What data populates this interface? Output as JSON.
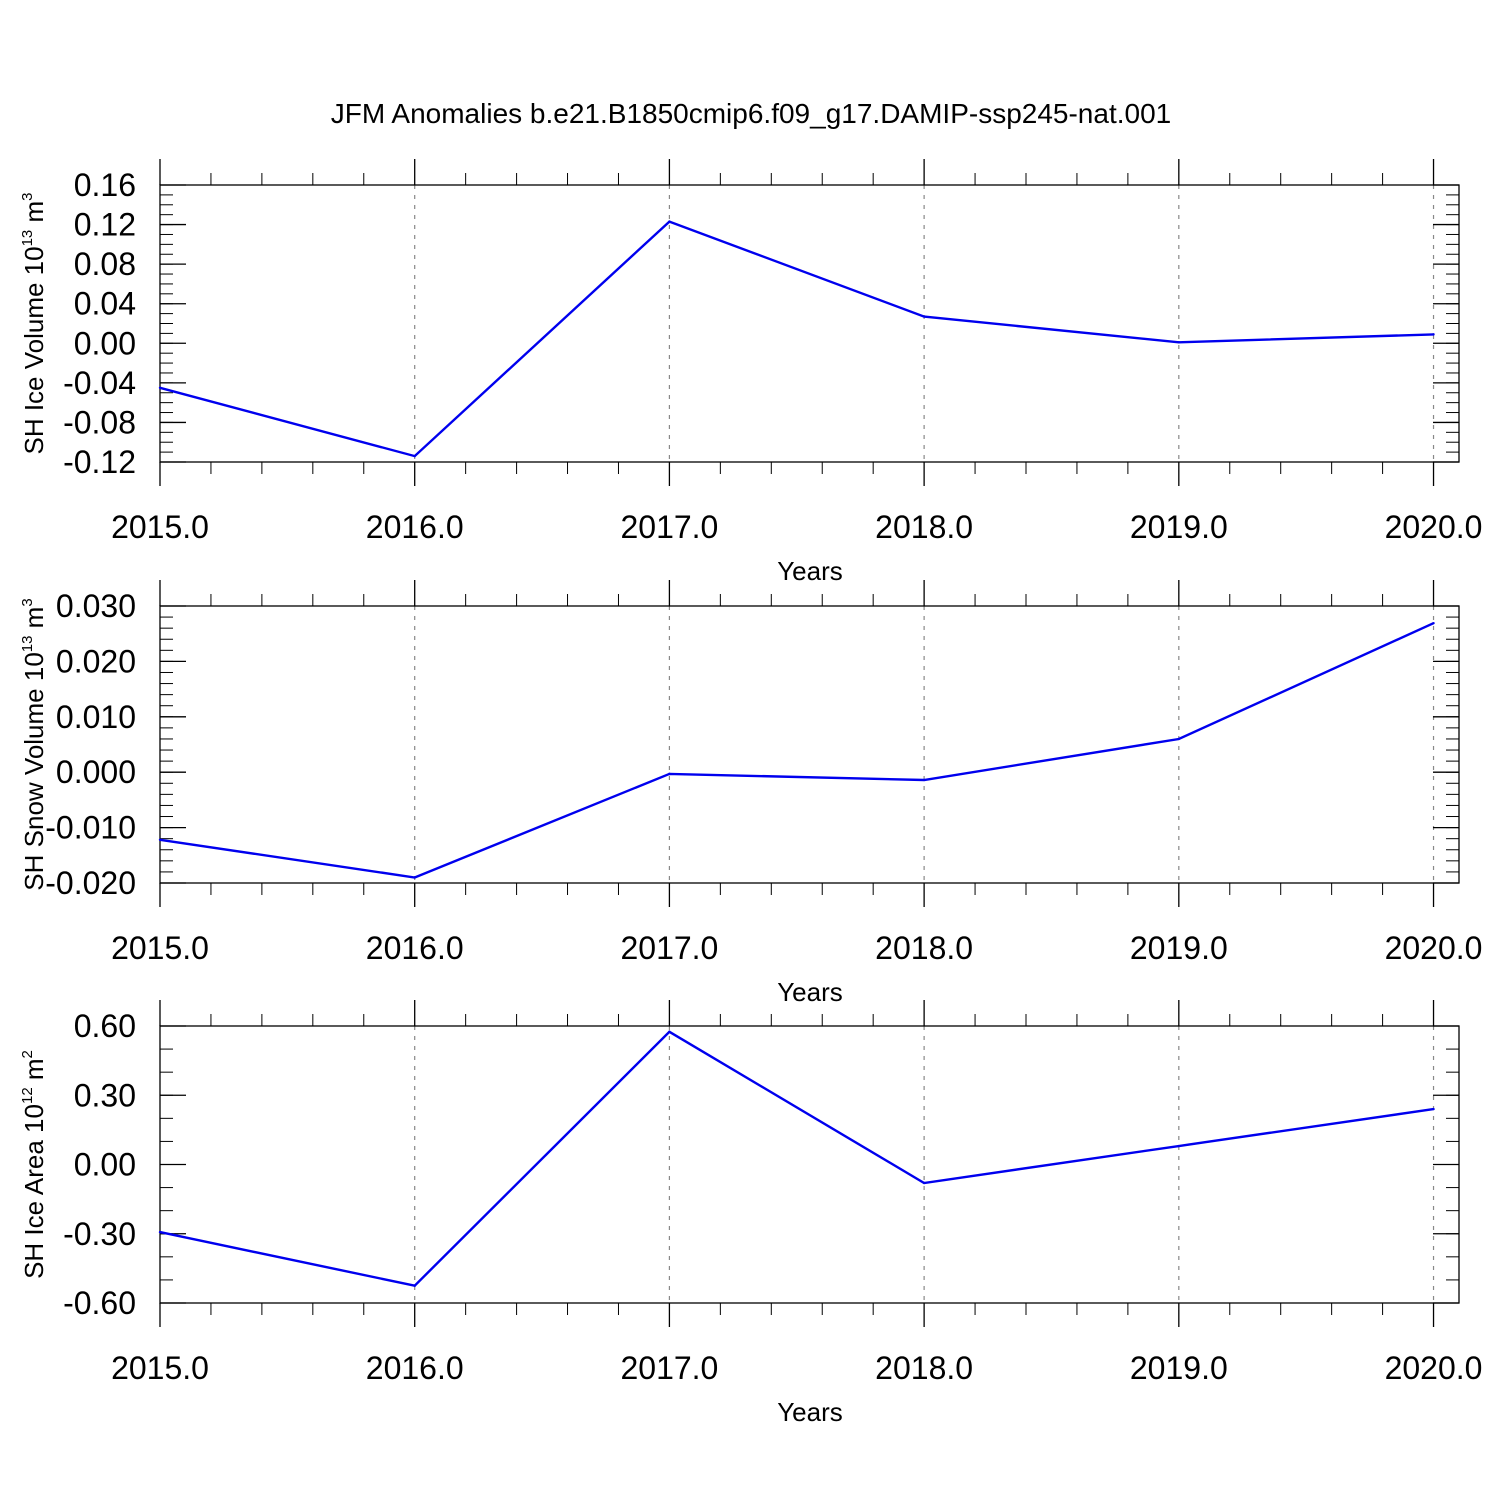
{
  "figure": {
    "title": "JFM Anomalies b.e21.B1850cmip6.f09_g17.DAMIP-ssp245-nat.001"
  },
  "chart_data": [
    {
      "type": "line",
      "xlabel": "Years",
      "ylabel": {
        "text": "SH Ice Volume 10",
        "sup": "13",
        "unit": " m",
        "unit_sup": "3"
      },
      "x": [
        2015,
        2016,
        2017,
        2018,
        2019,
        2020
      ],
      "xticks": [
        "2015.0",
        "2016.0",
        "2017.0",
        "2018.0",
        "2019.0",
        "2020.0"
      ],
      "xlim": [
        2015,
        2020.1
      ],
      "ylim": [
        -0.12,
        0.16
      ],
      "yticks": [
        "-0.12",
        "-0.08",
        "-0.04",
        "0.00",
        "0.04",
        "0.08",
        "0.12",
        "0.16"
      ],
      "yminor_step": 0.01,
      "series": [
        {
          "values": [
            -0.045,
            -0.114,
            0.123,
            0.027,
            0.001,
            0.009
          ],
          "color": "#0000ee"
        }
      ]
    },
    {
      "type": "line",
      "xlabel": "Years",
      "ylabel": {
        "text": "SH Snow Volume 10",
        "sup": "13",
        "unit": " m",
        "unit_sup": "3"
      },
      "x": [
        2015,
        2016,
        2017,
        2018,
        2019,
        2020
      ],
      "xticks": [
        "2015.0",
        "2016.0",
        "2017.0",
        "2018.0",
        "2019.0",
        "2020.0"
      ],
      "xlim": [
        2015,
        2020.1
      ],
      "ylim": [
        -0.02,
        0.03
      ],
      "yticks": [
        "-0.020",
        "-0.010",
        "0.000",
        "0.010",
        "0.020",
        "0.030"
      ],
      "yminor_step": 0.002,
      "series": [
        {
          "values": [
            -0.0122,
            -0.019,
            -0.0003,
            -0.0014,
            0.006,
            0.0269
          ],
          "color": "#0000ee"
        }
      ]
    },
    {
      "type": "line",
      "xlabel": "Years",
      "ylabel": {
        "text": "SH Ice Area 10",
        "sup": "12",
        "unit": " m",
        "unit_sup": "2"
      },
      "x": [
        2015,
        2016,
        2017,
        2018,
        2019,
        2020
      ],
      "xticks": [
        "2015.0",
        "2016.0",
        "2017.0",
        "2018.0",
        "2019.0",
        "2020.0"
      ],
      "xlim": [
        2015,
        2020.1
      ],
      "ylim": [
        -0.6,
        0.6
      ],
      "yticks": [
        "-0.60",
        "-0.30",
        "0.00",
        "0.30",
        "0.60"
      ],
      "yminor_step": 0.1,
      "series": [
        {
          "values": [
            -0.293,
            -0.525,
            0.575,
            -0.08,
            0.08,
            0.24
          ],
          "color": "#0000ee"
        }
      ]
    }
  ]
}
